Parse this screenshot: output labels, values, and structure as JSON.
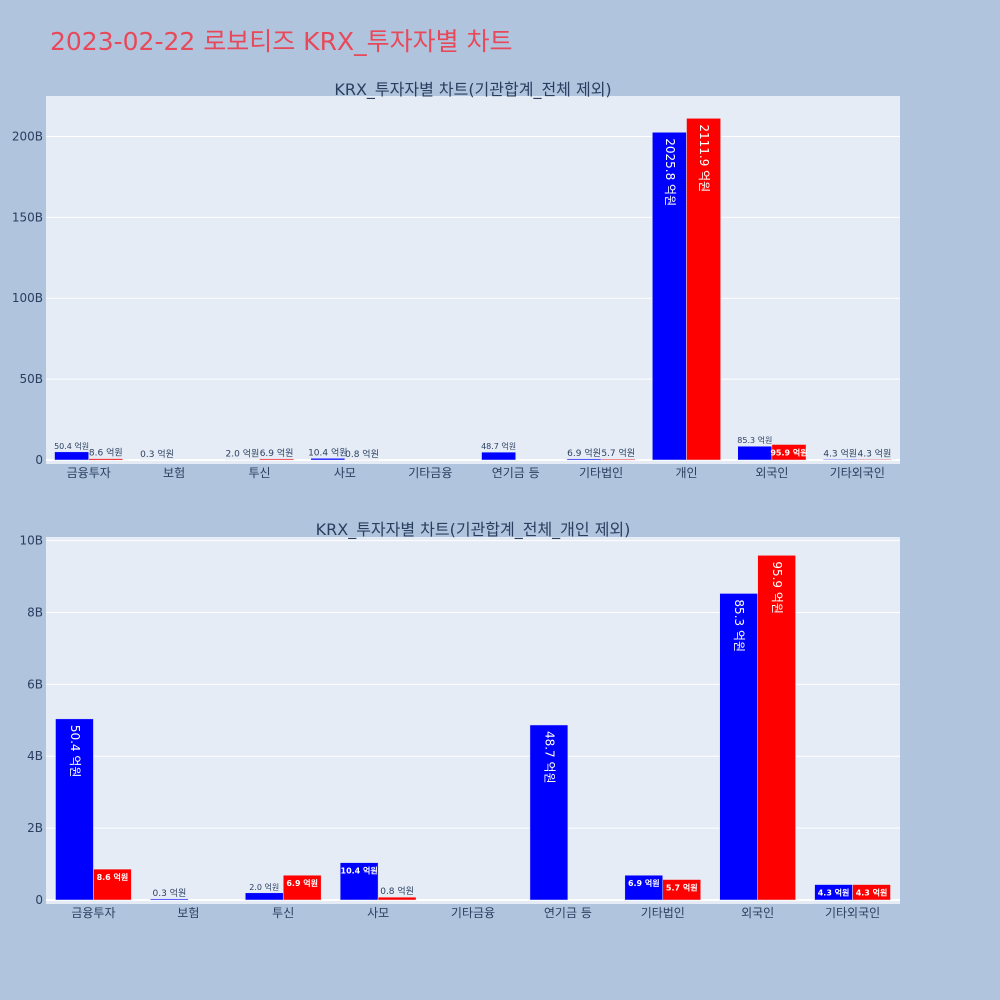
{
  "page": {
    "title": "2023-02-22 로보티즈 KRX_투자자별 차트"
  },
  "colors": {
    "buy": "#0000ff",
    "sell": "#ff0000",
    "plot_bg": "#e5ecf6",
    "grid": "#ffffff",
    "text": "#2a3f5f"
  },
  "chart_data": [
    {
      "type": "bar",
      "title": "KRX_투자자별 차트(기관합계_전체 제외)",
      "categories": [
        "금융투자",
        "보험",
        "투신",
        "사모",
        "기타금융",
        "연기금 등",
        "기타법인",
        "개인",
        "외국인",
        "기타외국인"
      ],
      "series": [
        {
          "color": "#0000ff",
          "values": [
            5.04,
            0.03,
            0.2,
            1.04,
            0,
            4.87,
            0.69,
            202.58,
            8.53,
            0.43
          ],
          "labels": [
            "50.4 억원",
            "0.3 억원",
            "2.0 억원",
            "10.4 억원",
            "",
            "48.7 억원",
            "6.9 억원",
            "2025.8 억원",
            "85.3 억원",
            "4.3 억원"
          ]
        },
        {
          "color": "#ff0000",
          "values": [
            0.86,
            0,
            0.69,
            0.08,
            0,
            0,
            0.57,
            211.19,
            9.59,
            0.43
          ],
          "labels": [
            "8.6 억원",
            "",
            "6.9 억원",
            "0.8 억원",
            "",
            "",
            "5.7 억원",
            "2111.9 억원",
            "95.9 억원",
            "4.3 억원"
          ]
        }
      ],
      "ylim": [
        0,
        225
      ],
      "yticks": [
        0,
        50,
        100,
        150,
        200
      ],
      "ytick_labels": [
        "0",
        "50B",
        "100B",
        "150B",
        "200B"
      ],
      "grid": true
    },
    {
      "type": "bar",
      "title": "KRX_투자자별 차트(기관합계_전체_개인 제외)",
      "categories": [
        "금융투자",
        "보험",
        "투신",
        "사모",
        "기타금융",
        "연기금 등",
        "기타법인",
        "외국인",
        "기타외국인"
      ],
      "series": [
        {
          "color": "#0000ff",
          "values": [
            5.04,
            0.03,
            0.2,
            1.04,
            0,
            4.87,
            0.69,
            8.53,
            0.43
          ],
          "labels": [
            "50.4 억원",
            "0.3 억원",
            "2.0 억원",
            "10.4 억원",
            "",
            "48.7 억원",
            "6.9 억원",
            "85.3 억원",
            "4.3 억원"
          ]
        },
        {
          "color": "#ff0000",
          "values": [
            0.86,
            0,
            0.69,
            0.08,
            0,
            0,
            0.57,
            9.59,
            0.43
          ],
          "labels": [
            "8.6 억원",
            "",
            "6.9 억원",
            "0.8 억원",
            "",
            "",
            "5.7 억원",
            "95.9 억원",
            "4.3 억원"
          ]
        }
      ],
      "ylim": [
        0,
        10.1
      ],
      "yticks": [
        0,
        2,
        4,
        6,
        8,
        10
      ],
      "ytick_labels": [
        "0",
        "2B",
        "4B",
        "6B",
        "8B",
        "10B"
      ],
      "grid": true
    }
  ]
}
